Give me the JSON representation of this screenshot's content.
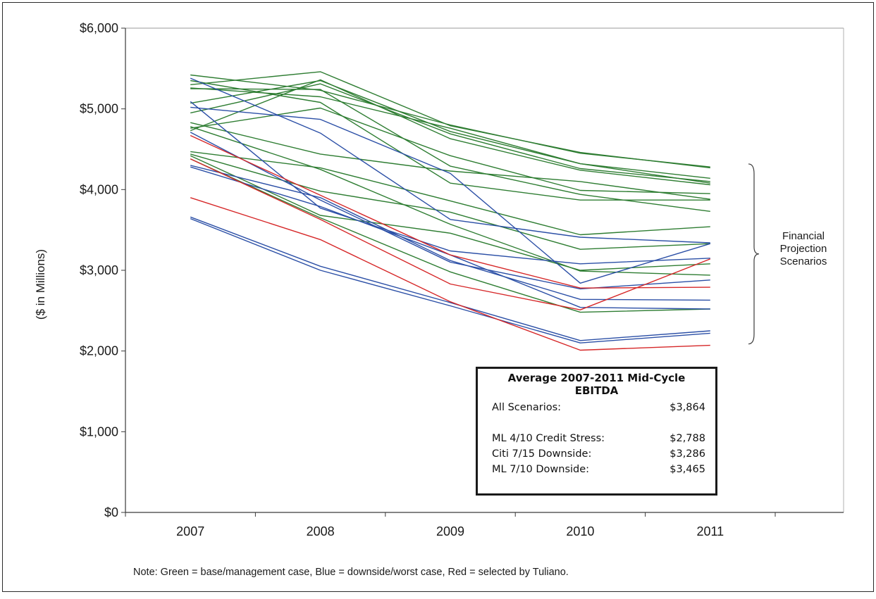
{
  "chart_data": {
    "type": "line",
    "title": "",
    "xlabel": "",
    "ylabel": "($ in Millions)",
    "x": [
      "2007",
      "2008",
      "2009",
      "2010",
      "2011"
    ],
    "ylim": [
      0,
      6000
    ],
    "yticks": [
      "$0",
      "$1,000",
      "$2,000",
      "$3,000",
      "$4,000",
      "$5,000",
      "$6,000"
    ],
    "grid": false,
    "colors": {
      "green": "#2e7d32",
      "blue": "#2b4fa6",
      "red": "#d62728"
    },
    "series": [
      {
        "color": "green",
        "values": [
          5420,
          5230,
          4800,
          4450,
          4280
        ]
      },
      {
        "color": "green",
        "values": [
          5300,
          5460,
          4790,
          4460,
          4270
        ]
      },
      {
        "color": "green",
        "values": [
          5260,
          5150,
          4760,
          4320,
          4140
        ]
      },
      {
        "color": "green",
        "values": [
          5070,
          5350,
          4720,
          4320,
          4080
        ]
      },
      {
        "color": "green",
        "values": [
          4950,
          5310,
          4690,
          4260,
          4100
        ]
      },
      {
        "color": "green",
        "values": [
          4730,
          5360,
          4630,
          4240,
          4060
        ]
      },
      {
        "color": "green",
        "values": [
          4760,
          5010,
          4420,
          3990,
          3950
        ]
      },
      {
        "color": "green",
        "values": [
          4830,
          4440,
          4230,
          4100,
          3880
        ]
      },
      {
        "color": "green",
        "values": [
          5350,
          5080,
          4080,
          3870,
          3870
        ]
      },
      {
        "color": "green",
        "values": [
          5250,
          5240,
          4290,
          3940,
          3730
        ]
      },
      {
        "color": "green",
        "values": [
          4470,
          4270,
          3860,
          3440,
          3540
        ]
      },
      {
        "color": "green",
        "values": [
          4440,
          3980,
          3720,
          3260,
          3330
        ]
      },
      {
        "color": "green",
        "values": [
          4780,
          4250,
          3570,
          2990,
          2940
        ]
      },
      {
        "color": "green",
        "values": [
          4420,
          3680,
          3460,
          3000,
          3080
        ]
      },
      {
        "color": "green",
        "values": [
          4380,
          3650,
          2980,
          2480,
          2520
        ]
      },
      {
        "color": "blue",
        "values": [
          5380,
          4700,
          3630,
          3410,
          3340
        ]
      },
      {
        "color": "blue",
        "values": [
          5020,
          4870,
          4200,
          2840,
          3330
        ]
      },
      {
        "color": "blue",
        "values": [
          5090,
          3770,
          3240,
          3080,
          3150
        ]
      },
      {
        "color": "blue",
        "values": [
          4710,
          3870,
          3100,
          2770,
          2880
        ]
      },
      {
        "color": "blue",
        "values": [
          4300,
          3900,
          3120,
          2640,
          2630
        ]
      },
      {
        "color": "blue",
        "values": [
          4280,
          3790,
          3190,
          2540,
          2520
        ]
      },
      {
        "color": "blue",
        "values": [
          3660,
          3050,
          2600,
          2130,
          2250
        ]
      },
      {
        "color": "blue",
        "values": [
          3640,
          3000,
          2560,
          2100,
          2220
        ]
      },
      {
        "color": "red",
        "values": [
          4670,
          3930,
          3190,
          2780,
          2790
        ]
      },
      {
        "color": "red",
        "values": [
          4380,
          3630,
          2830,
          2510,
          3140
        ]
      },
      {
        "color": "red",
        "values": [
          3900,
          3380,
          2610,
          2010,
          2070
        ]
      }
    ],
    "bracket_label": [
      "Financial",
      "Projection",
      "Scenarios"
    ],
    "bracket_range": [
      2000,
      4300
    ],
    "summary_box": {
      "title": "Average 2007-2011 Mid-Cycle EBITDA",
      "all_label": "All Scenarios:",
      "all_value": "$3,864",
      "rows": [
        {
          "label": "ML 4/10 Credit Stress:",
          "value": "$2,788"
        },
        {
          "label": "Citi 7/15 Downside:",
          "value": "$3,286"
        },
        {
          "label": "ML 7/10 Downside:",
          "value": "$3,465"
        }
      ]
    },
    "note": "Note: Green = base/management case, Blue = downside/worst case, Red = selected by Tuliano."
  }
}
